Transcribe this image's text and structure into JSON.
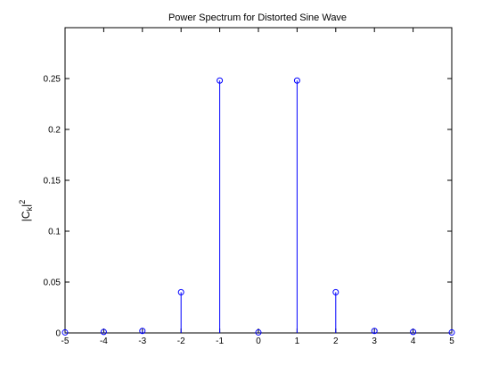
{
  "chart_data": {
    "type": "stem",
    "title": "Power Spectrum for Distorted Sine Wave",
    "xlabel": "",
    "ylabel_main": "|C",
    "ylabel_sub": "k",
    "ylabel_tail": "|",
    "ylabel_sup": "2",
    "xlim": [
      -5,
      5
    ],
    "ylim": [
      0,
      0.3
    ],
    "xticks": [
      -5,
      -4,
      -3,
      -2,
      -1,
      0,
      1,
      2,
      3,
      4,
      5
    ],
    "xtick_labels": [
      "-5",
      "-4",
      "-3",
      "-2",
      "-1",
      "0",
      "1",
      "2",
      "3",
      "4",
      "5"
    ],
    "yticks": [
      0,
      0.05,
      0.1,
      0.15,
      0.2,
      0.25
    ],
    "ytick_labels": [
      "0",
      "0.05",
      "0.1",
      "0.15",
      "0.2",
      "0.25"
    ],
    "grid": false,
    "x": [
      -5,
      -4,
      -3,
      -2,
      -1,
      0,
      1,
      2,
      3,
      4,
      5
    ],
    "values": [
      0.0005,
      0.001,
      0.002,
      0.04,
      0.248,
      0.0005,
      0.248,
      0.04,
      0.002,
      0.001,
      0.0005
    ],
    "color": "#0000ff"
  }
}
